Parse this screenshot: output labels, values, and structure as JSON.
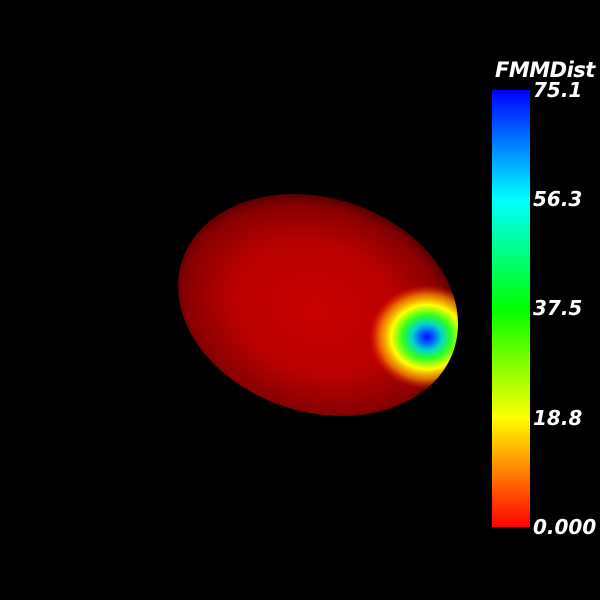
{
  "scene": {
    "background": "#000000",
    "object": "ellipsoid",
    "scalar_field": "FMMDist",
    "base_color": "#cc0000",
    "hotspot_colors": [
      "#ffff00",
      "#00ff00",
      "#00ffff",
      "#0000ff"
    ]
  },
  "legend": {
    "title": "FMMDist",
    "range": [
      0.0,
      75.1
    ],
    "colormap": [
      "#ff0000",
      "#ffff00",
      "#00ff00",
      "#00ffff",
      "#0000ff"
    ],
    "ticks": [
      "75.1",
      "56.3",
      "37.5",
      "18.8",
      "0.000"
    ]
  }
}
